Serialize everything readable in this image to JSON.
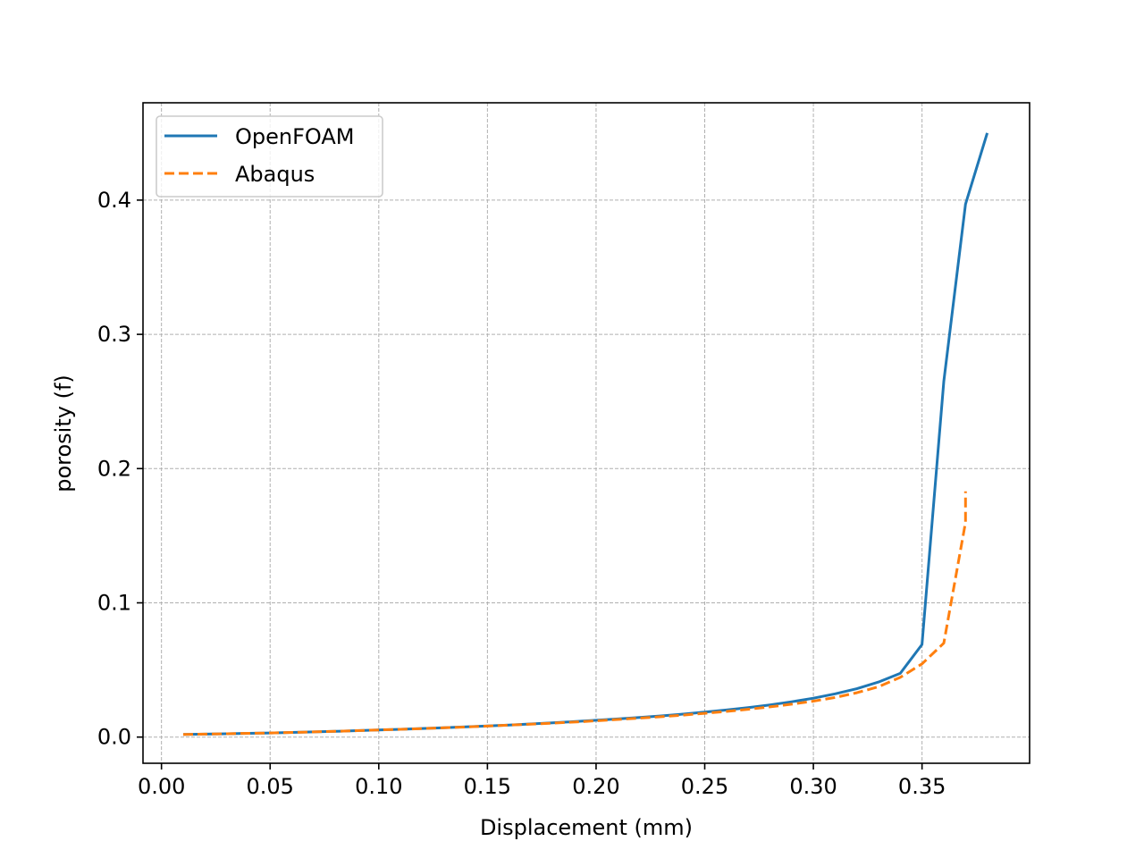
{
  "chart_data": {
    "type": "line",
    "xlabel": "Displacement (mm)",
    "ylabel": "porosity (f)",
    "xlim": [
      -0.0085,
      0.3995
    ],
    "ylim": [
      -0.0195,
      0.4725
    ],
    "xticks": [
      0.0,
      0.05,
      0.1,
      0.15,
      0.2,
      0.25,
      0.3,
      0.35
    ],
    "xtick_labels": [
      "0.00",
      "0.05",
      "0.10",
      "0.15",
      "0.20",
      "0.25",
      "0.30",
      "0.35"
    ],
    "yticks": [
      0.0,
      0.1,
      0.2,
      0.3,
      0.4
    ],
    "ytick_labels": [
      "0.0",
      "0.1",
      "0.2",
      "0.3",
      "0.4"
    ],
    "grid": true,
    "legend_position": "top-left",
    "series": [
      {
        "name": "OpenFOAM",
        "color": "#1f77b4",
        "style": "solid",
        "x": [
          0.01,
          0.02,
          0.03,
          0.04,
          0.05,
          0.06,
          0.07,
          0.08,
          0.09,
          0.1,
          0.11,
          0.12,
          0.13,
          0.14,
          0.15,
          0.16,
          0.17,
          0.18,
          0.19,
          0.2,
          0.21,
          0.22,
          0.23,
          0.24,
          0.25,
          0.26,
          0.27,
          0.28,
          0.29,
          0.3,
          0.31,
          0.32,
          0.33,
          0.34,
          0.35,
          0.36,
          0.37,
          0.38
        ],
        "y": [
          0.002,
          0.0022,
          0.0025,
          0.0028,
          0.0031,
          0.0035,
          0.0039,
          0.0043,
          0.0048,
          0.0053,
          0.0058,
          0.0064,
          0.007,
          0.0076,
          0.0083,
          0.009,
          0.0098,
          0.0106,
          0.0115,
          0.0125,
          0.0135,
          0.0146,
          0.0158,
          0.0171,
          0.0186,
          0.0202,
          0.022,
          0.024,
          0.0263,
          0.029,
          0.0322,
          0.036,
          0.041,
          0.0475,
          0.069,
          0.265,
          0.397,
          0.45
        ]
      },
      {
        "name": "Abaqus",
        "color": "#ff7f0e",
        "style": "dashed",
        "x": [
          0.01,
          0.02,
          0.03,
          0.04,
          0.05,
          0.06,
          0.07,
          0.08,
          0.09,
          0.1,
          0.11,
          0.12,
          0.13,
          0.14,
          0.15,
          0.16,
          0.17,
          0.18,
          0.19,
          0.2,
          0.21,
          0.22,
          0.23,
          0.24,
          0.25,
          0.26,
          0.27,
          0.28,
          0.29,
          0.3,
          0.31,
          0.32,
          0.33,
          0.34,
          0.35,
          0.36,
          0.37,
          0.37
        ],
        "y": [
          0.002,
          0.0022,
          0.0025,
          0.0028,
          0.0031,
          0.0035,
          0.0039,
          0.0043,
          0.0048,
          0.0053,
          0.0058,
          0.0063,
          0.0069,
          0.0075,
          0.0082,
          0.0089,
          0.0096,
          0.0104,
          0.0112,
          0.0121,
          0.0131,
          0.0141,
          0.0152,
          0.0164,
          0.0177,
          0.0191,
          0.0207,
          0.0225,
          0.0245,
          0.0268,
          0.0295,
          0.033,
          0.0375,
          0.0445,
          0.0545,
          0.07,
          0.16,
          0.183
        ]
      }
    ]
  }
}
